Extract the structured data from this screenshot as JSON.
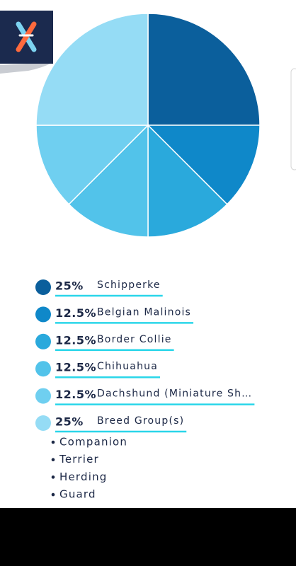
{
  "chart_data": {
    "type": "pie",
    "categories": [
      "Schipperke",
      "Belgian Malinois",
      "Border Collie",
      "Chihuahua",
      "Dachshund (Miniature Sh…",
      "Breed Group(s)"
    ],
    "values": [
      25,
      12.5,
      12.5,
      12.5,
      12.5,
      25
    ],
    "value_labels": [
      "25%",
      "12.5%",
      "12.5%",
      "12.5%",
      "12.5%",
      "25%"
    ],
    "colors": [
      "#0b5f9c",
      "#0f88c9",
      "#2aa9dc",
      "#52c3ea",
      "#6fcff0",
      "#95dcf5"
    ]
  },
  "breed_groups": [
    "Companion",
    "Terrier",
    "Herding",
    "Guard"
  ]
}
